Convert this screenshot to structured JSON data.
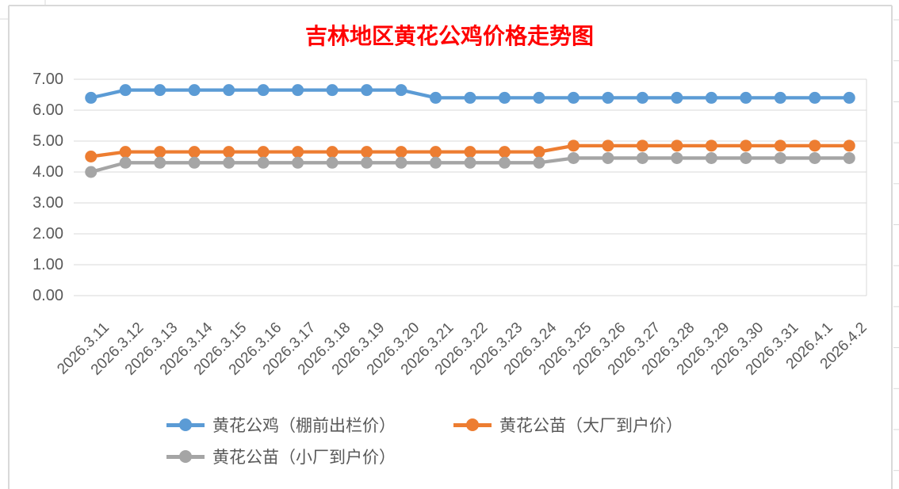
{
  "chart_data": {
    "type": "line",
    "title": "吉林地区黄花公鸡价格走势图",
    "xlabel": "",
    "ylabel": "",
    "ylim": [
      0,
      7
    ],
    "y_tick_step": 1,
    "grid": true,
    "legend_position": "bottom",
    "y_tick_labels": [
      "7.00",
      "6.00",
      "5.00",
      "4.00",
      "3.00",
      "2.00",
      "1.00",
      "0.00"
    ],
    "categories": [
      "2026.3.11",
      "2026.3.12",
      "2026.3.13",
      "2026.3.14",
      "2026.3.15",
      "2026.3.16",
      "2026.3.17",
      "2026.3.18",
      "2026.3.19",
      "2026.3.20",
      "2026.3.21",
      "2026.3.22",
      "2026.3.23",
      "2026.3.24",
      "2026.3.25",
      "2026.3.26",
      "2026.3.27",
      "2026.3.28",
      "2026.3.29",
      "2026.3.30",
      "2026.3.31",
      "2026.4.1",
      "2026.4.2"
    ],
    "series": [
      {
        "name": "黄花公鸡（棚前出栏价）",
        "color": "#5B9BD5",
        "values": [
          6.4,
          6.65,
          6.65,
          6.65,
          6.65,
          6.65,
          6.65,
          6.65,
          6.65,
          6.65,
          6.4,
          6.4,
          6.4,
          6.4,
          6.4,
          6.4,
          6.4,
          6.4,
          6.4,
          6.4,
          6.4,
          6.4,
          6.4
        ]
      },
      {
        "name": "黄花公苗（大厂到户价）",
        "color": "#ED7D31",
        "values": [
          4.5,
          4.65,
          4.65,
          4.65,
          4.65,
          4.65,
          4.65,
          4.65,
          4.65,
          4.65,
          4.65,
          4.65,
          4.65,
          4.65,
          4.85,
          4.85,
          4.85,
          4.85,
          4.85,
          4.85,
          4.85,
          4.85,
          4.85
        ]
      },
      {
        "name": "黄花公苗（小厂到户价）",
        "color": "#A5A5A5",
        "values": [
          4.0,
          4.3,
          4.3,
          4.3,
          4.3,
          4.3,
          4.3,
          4.3,
          4.3,
          4.3,
          4.3,
          4.3,
          4.3,
          4.3,
          4.45,
          4.45,
          4.45,
          4.45,
          4.45,
          4.45,
          4.45,
          4.45,
          4.45
        ]
      }
    ],
    "colors": {
      "title": "#FF0000",
      "axis_text": "#595959",
      "gridline": "#D9D9D9",
      "chart_border": "#D9D9D9"
    }
  }
}
